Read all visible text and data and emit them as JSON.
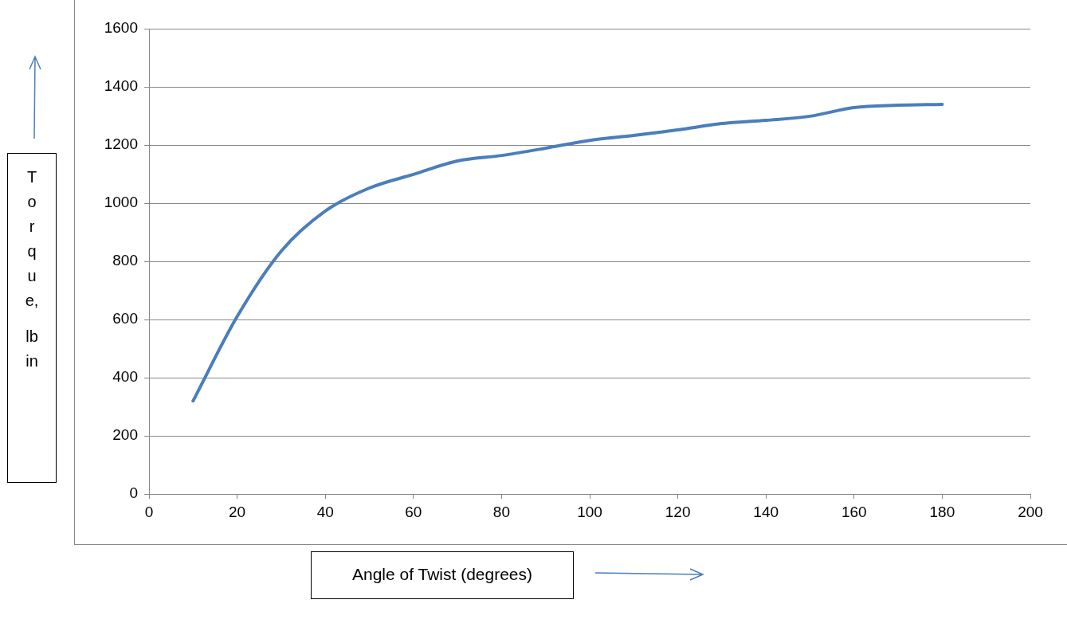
{
  "chart_data": {
    "type": "line",
    "xlabel": "Angle of Twist (degrees)",
    "ylabel": "Torque, lb in",
    "x": [
      10,
      20,
      30,
      40,
      50,
      60,
      70,
      80,
      90,
      100,
      110,
      120,
      130,
      140,
      150,
      160,
      170,
      180
    ],
    "series": [
      {
        "color": "#4a7ebb",
        "values": [
          320,
          610,
          835,
          973,
          1052,
          1099,
          1145,
          1164,
          1189,
          1216,
          1233,
          1252,
          1274,
          1285,
          1299,
          1329,
          1337,
          1340
        ]
      }
    ],
    "xlim": [
      0,
      200
    ],
    "xticks": [
      0,
      20,
      40,
      60,
      80,
      100,
      120,
      140,
      160,
      180,
      200
    ],
    "ylim": [
      0,
      1600
    ],
    "yticks": [
      0,
      200,
      400,
      600,
      800,
      1000,
      1200,
      1400,
      1600
    ],
    "grid": "y",
    "legend": false,
    "marker": "none",
    "line_style": "solid"
  }
}
